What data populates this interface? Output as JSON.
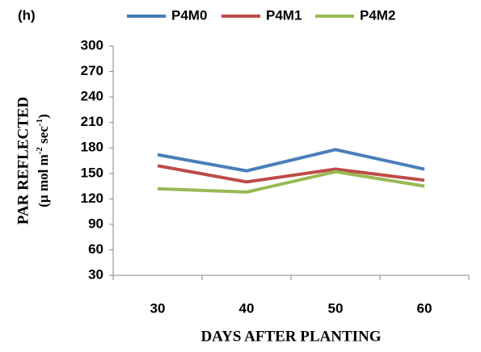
{
  "chart_data": {
    "type": "line",
    "panel_label": "(h)",
    "x_label": "DAYS AFTER PLANTING",
    "y_label": "PAR REFLECTED",
    "y_label_units": [
      "(µ mol m",
      "-2",
      " sec",
      "-1",
      ")"
    ],
    "categories": [
      "30",
      "40",
      "50",
      "60"
    ],
    "series": [
      {
        "name": "P4M0",
        "color": "#4a7ebb",
        "values": [
          172,
          153,
          178,
          155
        ]
      },
      {
        "name": "P4M1",
        "color": "#be4b48",
        "values": [
          159,
          140,
          155,
          142
        ]
      },
      {
        "name": "P4M2",
        "color": "#98b954",
        "values": [
          132,
          128,
          152,
          135
        ]
      }
    ],
    "ylim": [
      30,
      300
    ],
    "yticks": [
      30,
      60,
      90,
      120,
      150,
      180,
      210,
      240,
      270,
      300
    ],
    "legend": "top",
    "grid": false
  }
}
